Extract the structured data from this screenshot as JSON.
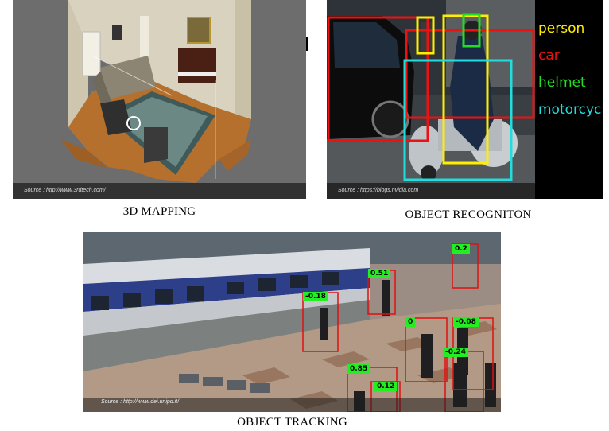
{
  "figure": {
    "mapping": {
      "caption": "3D MAPPING",
      "source": "Source : http://www.3rdtech.com/"
    },
    "recognition": {
      "caption": "OBJECT RECOGNITON",
      "source": "Source : https://blogs.nvidia.com",
      "legend": [
        {
          "label": "person",
          "color": "#ffee00"
        },
        {
          "label": "car",
          "color": "#ee1111"
        },
        {
          "label": "helmet",
          "color": "#22dd22"
        },
        {
          "label": "motorcycle",
          "color": "#22dddd"
        }
      ]
    },
    "tracking": {
      "caption": "OBJECT TRACKING",
      "source": "Source : http://www.dei.unipd.it/",
      "labels": [
        "0.2",
        "0.51",
        "-0.18",
        "0",
        "-0.08",
        "-0.24",
        "0.85",
        "0.12"
      ]
    }
  }
}
